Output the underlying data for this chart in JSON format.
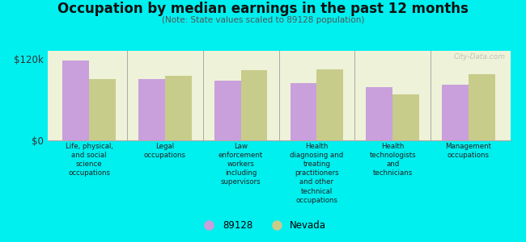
{
  "title": "Occupation by median earnings in the past 12 months",
  "subtitle": "(Note: State values scaled to 89128 population)",
  "categories": [
    "Life, physical,\nand social\nscience\noccupations",
    "Legal\noccupations",
    "Law\nenforcement\nworkers\nincluding\nsupervisors",
    "Health\ndiagnosing and\ntreating\npractitioners\nand other\ntechnical\noccupations",
    "Health\ntechnologists\nand\ntechnicians",
    "Management\noccupations"
  ],
  "values_89128": [
    118000,
    90000,
    88000,
    85000,
    79000,
    82000
  ],
  "values_nevada": [
    90000,
    95000,
    103000,
    105000,
    68000,
    98000
  ],
  "color_89128": "#c9a0dc",
  "color_nevada": "#c8cc8a",
  "bar_width": 0.35,
  "ylim": [
    0,
    132000
  ],
  "yticks": [
    0,
    120000
  ],
  "ytick_labels": [
    "$0",
    "$120k"
  ],
  "plot_bg": "#eef2d8",
  "outer_bg": "#00efef",
  "legend_label_89128": "89128",
  "legend_label_nevada": "Nevada",
  "watermark": "City-Data.com"
}
